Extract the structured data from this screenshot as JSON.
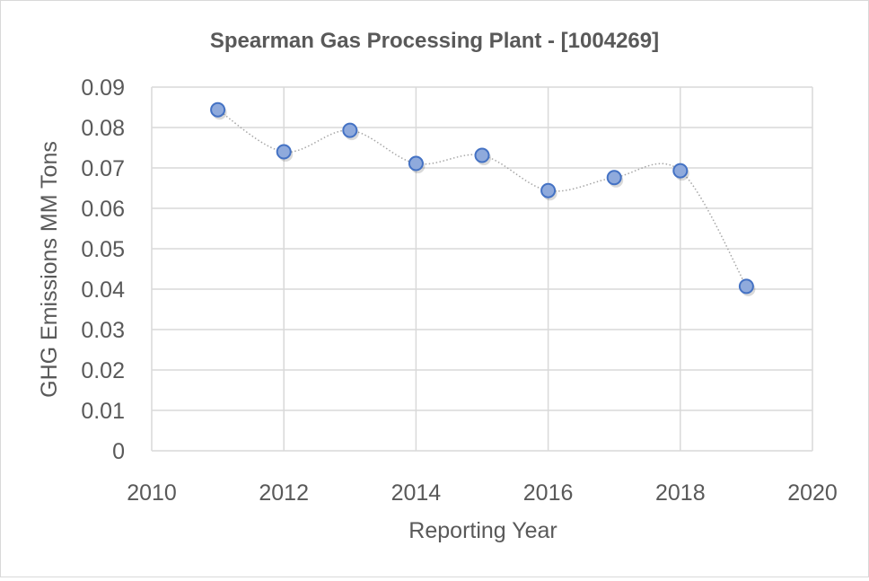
{
  "chart_data": {
    "type": "scatter",
    "title": "Spearman Gas Processing Plant - [1004269]",
    "xlabel": "Reporting Year",
    "ylabel": "GHG Emissions MM Tons",
    "xlim": [
      2010,
      2020
    ],
    "ylim": [
      0,
      0.09
    ],
    "xticks": [
      2010,
      2012,
      2014,
      2016,
      2018,
      2020
    ],
    "yticks": [
      0,
      0.01,
      0.02,
      0.03,
      0.04,
      0.05,
      0.06,
      0.07,
      0.08,
      0.09
    ],
    "ytick_labels": [
      "0",
      "0.01",
      "0.02",
      "0.03",
      "0.04",
      "0.05",
      "0.06",
      "0.07",
      "0.08",
      "0.09"
    ],
    "grid": true,
    "line_style": "smoothed dotted",
    "series": [
      {
        "name": "GHG Emissions",
        "x": [
          2011,
          2012,
          2013,
          2014,
          2015,
          2016,
          2017,
          2018,
          2019
        ],
        "y": [
          0.0844,
          0.074,
          0.0793,
          0.0711,
          0.0731,
          0.0644,
          0.0676,
          0.0693,
          0.0407
        ],
        "marker_color": "#8faadc",
        "marker_edge": "#4472c4"
      }
    ]
  }
}
